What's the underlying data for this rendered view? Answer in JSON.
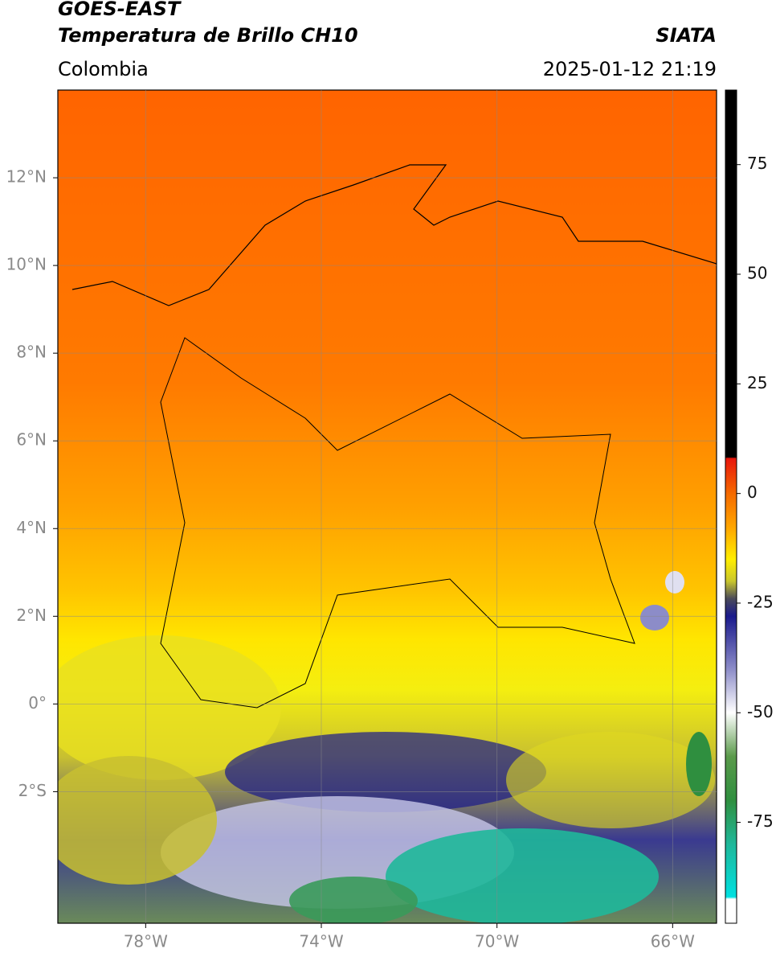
{
  "header": {
    "title": "GOES-EAST",
    "subtitle": "Temperatura de Brillo CH10",
    "source": "SIATA",
    "region": "Colombia",
    "datetime": "2025-01-12 21:19"
  },
  "chart_data": {
    "type": "map",
    "xlim": [
      -80,
      -65
    ],
    "ylim": [
      -5,
      14
    ],
    "xticks": [
      {
        "value": -78,
        "label": "78°W"
      },
      {
        "value": -74,
        "label": "74°W"
      },
      {
        "value": -70,
        "label": "70°W"
      },
      {
        "value": -66,
        "label": "66°W"
      }
    ],
    "yticks": [
      {
        "value": 12,
        "label": "12°N"
      },
      {
        "value": 10,
        "label": "10°N"
      },
      {
        "value": 8,
        "label": "8°N"
      },
      {
        "value": 6,
        "label": "6°N"
      },
      {
        "value": 4,
        "label": "4°N"
      },
      {
        "value": 2,
        "label": "2°N"
      },
      {
        "value": 0,
        "label": "0°"
      },
      {
        "value": -2,
        "label": "2°S"
      }
    ],
    "grid": true,
    "colorbar": {
      "lim": [
        -98,
        92
      ],
      "ticks": [
        75,
        50,
        25,
        0,
        -25,
        -50,
        -75
      ],
      "colormap": [
        {
          "value": 92,
          "color": "#000000"
        },
        {
          "value": 8.3,
          "color": "#000000"
        },
        {
          "value": 8,
          "color": "#e8160c"
        },
        {
          "value": 0,
          "color": "#f56a00"
        },
        {
          "value": -8,
          "color": "#ffa800"
        },
        {
          "value": -15,
          "color": "#ffee00"
        },
        {
          "value": -20,
          "color": "#c9c62c"
        },
        {
          "value": -24,
          "color": "#4a4a5a"
        },
        {
          "value": -28,
          "color": "#1a1a8c"
        },
        {
          "value": -40,
          "color": "#8c8cc8"
        },
        {
          "value": -50,
          "color": "#ffffff"
        },
        {
          "value": -60,
          "color": "#5a9a4a"
        },
        {
          "value": -70,
          "color": "#2f8f3f"
        },
        {
          "value": -80,
          "color": "#1fb89a"
        },
        {
          "value": -92,
          "color": "#00e0e0"
        },
        {
          "value": -92.5,
          "color": "#ffffff"
        },
        {
          "value": -98,
          "color": "#ffffff"
        }
      ]
    }
  }
}
